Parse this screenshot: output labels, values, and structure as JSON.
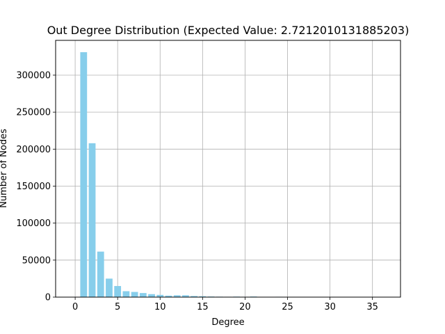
{
  "chart_data": {
    "type": "bar",
    "title": "Out Degree Distribution (Expected Value: 2.7212010131885203)",
    "xlabel": "Degree",
    "ylabel": "Number of Nodes",
    "xlim": [
      -2.3,
      38.3
    ],
    "ylim": [
      0,
      347000
    ],
    "xticks": [
      0,
      5,
      10,
      15,
      20,
      25,
      30,
      35
    ],
    "yticks": [
      0,
      50000,
      100000,
      150000,
      200000,
      250000,
      300000
    ],
    "grid": true,
    "bar_color": "#87ceeb",
    "x": [
      1,
      2,
      3,
      4,
      5,
      6,
      7,
      8,
      9,
      10,
      11,
      12,
      13,
      14,
      15,
      16,
      17,
      18,
      19,
      20,
      21,
      22,
      23,
      24,
      25,
      36
    ],
    "values": [
      331000,
      208000,
      61500,
      25000,
      15000,
      8000,
      7000,
      5500,
      4000,
      3000,
      2000,
      2500,
      2500,
      1500,
      1200,
      800,
      600,
      500,
      700,
      500,
      800,
      300,
      300,
      500,
      200,
      150
    ]
  }
}
